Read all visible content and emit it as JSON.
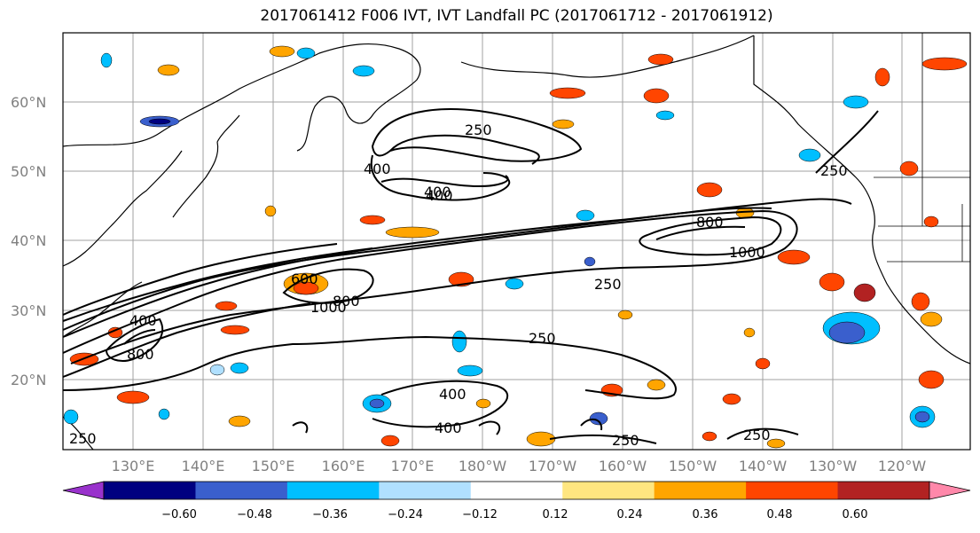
{
  "title": "2017061412 F006 IVT, IVT Landfall PC (2017061712 - 2017061912)",
  "lat_labels": [
    "60°N",
    "50°N",
    "40°N",
    "30°N",
    "20°N"
  ],
  "lon_labels": [
    "130°E",
    "140°E",
    "150°E",
    "160°E",
    "170°E",
    "180°W",
    "170°W",
    "160°W",
    "150°W",
    "140°W",
    "130°W",
    "120°W"
  ],
  "colorbar": {
    "colors": [
      "#9932cc",
      "#000080",
      "#3a5fcd",
      "#00bfff",
      "#b0e0ff",
      "#ffffff",
      "#ffe680",
      "#ffa500",
      "#ff4500",
      "#b22222",
      "#ff88aa"
    ],
    "ticks": [
      "−0.60",
      "−0.48",
      "−0.36",
      "−0.24",
      "−0.12",
      "0.12",
      "0.24",
      "0.36",
      "0.48",
      "0.60"
    ]
  },
  "contour_labels": [
    "250",
    "400",
    "400",
    "400",
    "800",
    "1000",
    "600",
    "1000",
    "800",
    "250",
    "250",
    "400",
    "400",
    "250",
    "250",
    "250",
    "800",
    "400",
    "250"
  ]
}
